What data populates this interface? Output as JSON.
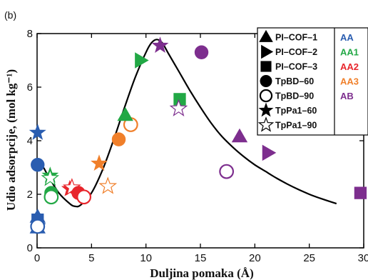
{
  "panel_label": "(b)",
  "colors": {
    "AA": "#2a5db0",
    "AA1": "#22a845",
    "AA2": "#e8262c",
    "AA3": "#f07f2a",
    "AB": "#7d2e8e",
    "curve": "#000000"
  },
  "chart_data": {
    "type": "scatter",
    "xlabel": "Duljina pomaka (Å)",
    "ylabel": "Udio adsorpcije, (mol kg⁻¹)",
    "xlim": [
      0,
      30
    ],
    "ylim": [
      0,
      8
    ],
    "x_ticks": [
      0,
      5,
      10,
      15,
      20,
      25,
      30
    ],
    "y_ticks": [
      0,
      2,
      4,
      6,
      8
    ],
    "legend": {
      "placement": "top-right",
      "materials": [
        {
          "label": "PI–COF–1",
          "marker": "triangle-up",
          "filled": true
        },
        {
          "label": "PI–COF–2",
          "marker": "triangle-right",
          "filled": true
        },
        {
          "label": "PI–COF–3",
          "marker": "square",
          "filled": true
        },
        {
          "label": "TpBD–60",
          "marker": "circle",
          "filled": true
        },
        {
          "label": "TpBD–90",
          "marker": "circle",
          "filled": false
        },
        {
          "label": "TpPa1–60",
          "marker": "star",
          "filled": true
        },
        {
          "label": "TpPa1–90",
          "marker": "star",
          "filled": false
        }
      ],
      "stackings": [
        {
          "label": "AA",
          "color_key": "AA"
        },
        {
          "label": "AA1",
          "color_key": "AA1"
        },
        {
          "label": "AA2",
          "color_key": "AA2"
        },
        {
          "label": "AA3",
          "color_key": "AA3"
        },
        {
          "label": "AB",
          "color_key": "AB"
        }
      ]
    },
    "points": [
      {
        "x": 0.05,
        "y": 0.75,
        "marker": "triangle-up",
        "filled": true,
        "stacking": "AA"
      },
      {
        "x": 0.05,
        "y": 1.15,
        "marker": "triangle-up",
        "filled": true,
        "stacking": "AA"
      },
      {
        "x": 0.05,
        "y": 0.9,
        "marker": "triangle-right",
        "filled": true,
        "stacking": "AA"
      },
      {
        "x": 0.05,
        "y": 1.05,
        "marker": "square",
        "filled": true,
        "stacking": "AA"
      },
      {
        "x": 0.05,
        "y": 3.1,
        "marker": "circle",
        "filled": true,
        "stacking": "AA"
      },
      {
        "x": 0.05,
        "y": 4.3,
        "marker": "star",
        "filled": true,
        "stacking": "AA"
      },
      {
        "x": 0.05,
        "y": 0.8,
        "marker": "circle",
        "filled": false,
        "stacking": "AA"
      },
      {
        "x": 1.2,
        "y": 2.7,
        "marker": "star",
        "filled": true,
        "stacking": "AA1"
      },
      {
        "x": 1.2,
        "y": 2.6,
        "marker": "star",
        "filled": false,
        "stacking": "AA1"
      },
      {
        "x": 1.3,
        "y": 2.05,
        "marker": "circle",
        "filled": true,
        "stacking": "AA1"
      },
      {
        "x": 1.3,
        "y": 1.9,
        "marker": "circle",
        "filled": false,
        "stacking": "AA1"
      },
      {
        "x": 3.0,
        "y": 2.2,
        "marker": "star",
        "filled": true,
        "stacking": "AA2"
      },
      {
        "x": 3.2,
        "y": 2.25,
        "marker": "star",
        "filled": false,
        "stacking": "AA2"
      },
      {
        "x": 3.8,
        "y": 2.05,
        "marker": "circle",
        "filled": true,
        "stacking": "AA2"
      },
      {
        "x": 4.3,
        "y": 1.9,
        "marker": "circle",
        "filled": false,
        "stacking": "AA2"
      },
      {
        "x": 5.7,
        "y": 3.15,
        "marker": "star",
        "filled": true,
        "stacking": "AA3"
      },
      {
        "x": 6.5,
        "y": 2.3,
        "marker": "star",
        "filled": false,
        "stacking": "AA3"
      },
      {
        "x": 7.5,
        "y": 4.05,
        "marker": "circle",
        "filled": true,
        "stacking": "AA3"
      },
      {
        "x": 8.6,
        "y": 4.6,
        "marker": "circle",
        "filled": false,
        "stacking": "AA3"
      },
      {
        "x": 8.1,
        "y": 4.95,
        "marker": "triangle-up",
        "filled": true,
        "stacking": "AA1"
      },
      {
        "x": 9.5,
        "y": 7.0,
        "marker": "triangle-right",
        "filled": true,
        "stacking": "AA1"
      },
      {
        "x": 13.1,
        "y": 5.55,
        "marker": "square",
        "filled": true,
        "stacking": "AA1"
      },
      {
        "x": 11.3,
        "y": 7.55,
        "marker": "star",
        "filled": true,
        "stacking": "AB"
      },
      {
        "x": 13.0,
        "y": 5.2,
        "marker": "star",
        "filled": false,
        "stacking": "AB"
      },
      {
        "x": 15.1,
        "y": 7.3,
        "marker": "circle",
        "filled": true,
        "stacking": "AB"
      },
      {
        "x": 17.4,
        "y": 2.85,
        "marker": "circle",
        "filled": false,
        "stacking": "AB"
      },
      {
        "x": 18.6,
        "y": 4.15,
        "marker": "triangle-up",
        "filled": true,
        "stacking": "AB"
      },
      {
        "x": 21.2,
        "y": 3.55,
        "marker": "triangle-right",
        "filled": true,
        "stacking": "AB"
      },
      {
        "x": 29.7,
        "y": 2.05,
        "marker": "square",
        "filled": true,
        "stacking": "AB"
      }
    ],
    "fit_curve": {
      "name": "",
      "x": [
        0,
        0.5,
        1,
        2,
        3,
        3.5,
        4,
        5,
        6,
        7,
        8,
        9,
        10,
        10.5,
        11,
        11.5,
        12,
        13,
        14,
        15,
        16,
        17,
        18,
        19,
        20,
        21,
        22,
        23,
        24,
        25,
        26,
        27.5
      ],
      "y": [
        3.2,
        3.05,
        2.7,
        2.05,
        1.65,
        1.55,
        1.6,
        2.05,
        2.9,
        4.0,
        5.2,
        6.35,
        7.3,
        7.65,
        7.78,
        7.65,
        7.3,
        6.6,
        5.9,
        5.25,
        4.65,
        4.15,
        3.75,
        3.4,
        3.1,
        2.85,
        2.6,
        2.38,
        2.18,
        2.0,
        1.85,
        1.65
      ]
    }
  }
}
